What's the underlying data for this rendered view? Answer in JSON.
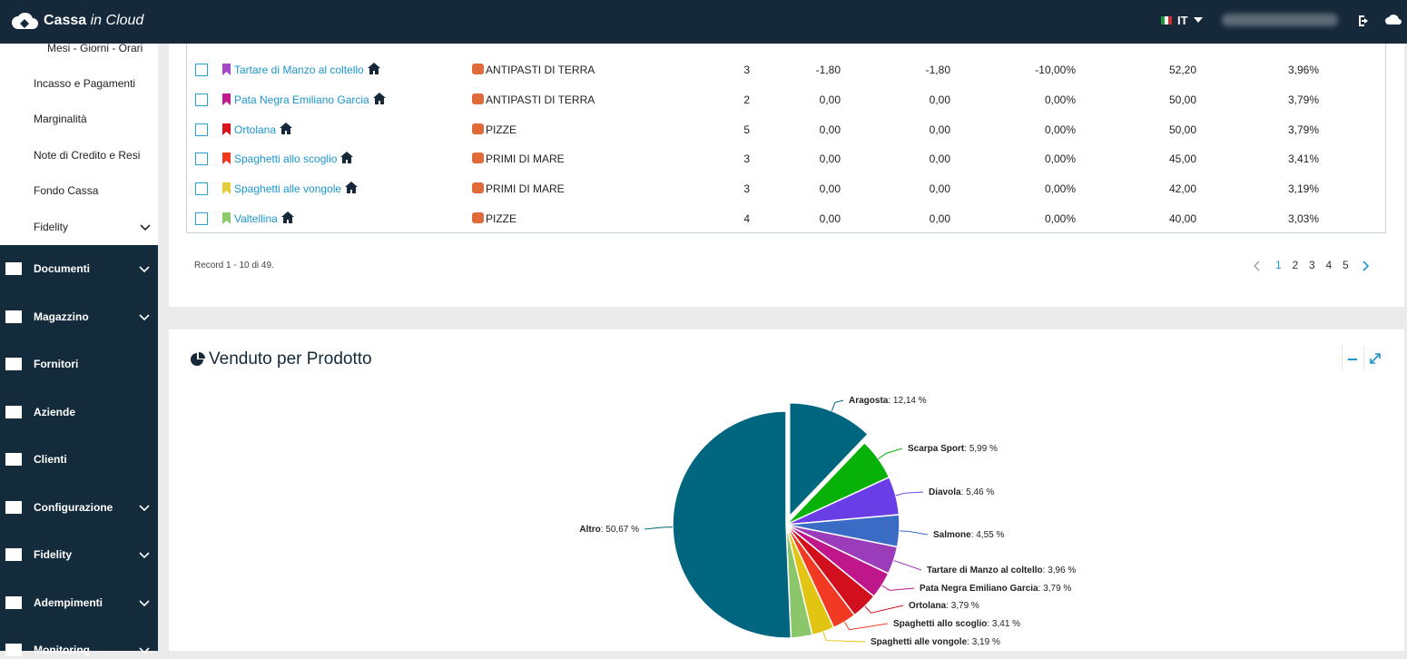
{
  "header": {
    "logo_main": "Cassa",
    "logo_sub": "in Cloud",
    "language": "IT"
  },
  "sidebar": {
    "submenu": [
      "Mesi - Giorni - Orari",
      "Incasso e Pagamenti",
      "Marginalità",
      "Note di Credito e Resi",
      "Fondo Cassa",
      "Fidelity"
    ],
    "submenu_has_children": [
      false,
      false,
      false,
      false,
      false,
      true
    ],
    "menu": [
      "Documenti",
      "Magazzino",
      "Fornitori",
      "Aziende",
      "Clienti",
      "Configurazione",
      "Fidelity",
      "Adempimenti",
      "Monitoring"
    ],
    "menu_has_children": [
      true,
      true,
      false,
      false,
      false,
      true,
      true,
      true,
      true
    ]
  },
  "table": {
    "rows": [
      [
        "Tartare di Manzo al coltello",
        "ANTIPASTI DI TERRA",
        "3",
        "-1,80",
        "-1,80",
        "-10,00%",
        "52,20",
        "3,96%"
      ],
      [
        "Pata Negra Emiliano Garcia",
        "ANTIPASTI DI TERRA",
        "2",
        "0,00",
        "0,00",
        "0,00%",
        "50,00",
        "3,79%"
      ],
      [
        "Ortolana",
        "PIZZE",
        "5",
        "0,00",
        "0,00",
        "0,00%",
        "50,00",
        "3,79%"
      ],
      [
        "Spaghetti allo scoglio",
        "PRIMI DI MARE",
        "3",
        "0,00",
        "0,00",
        "0,00%",
        "45,00",
        "3,41%"
      ],
      [
        "Spaghetti alle vongole",
        "PRIMI DI MARE",
        "3",
        "0,00",
        "0,00",
        "0,00%",
        "42,00",
        "3,19%"
      ],
      [
        "Valtellina",
        "PIZZE",
        "4",
        "0,00",
        "0,00",
        "0,00%",
        "40,00",
        "3,03%"
      ]
    ],
    "marker_colors": [
      "#a547c6",
      "#c2188f",
      "#d8141f",
      "#f0391f",
      "#e6cc3a",
      "#8ccb6a"
    ],
    "records": "Record 1 - 10 di 49.",
    "pages": [
      1,
      2,
      3,
      4,
      5
    ],
    "current_page": 1
  },
  "panel": {
    "title": "Venduto per Prodotto",
    "chart": {
      "type": "pie",
      "labels": [
        "Aragosta",
        "Scarpa Sport",
        "Diavola",
        "Salmone",
        "Tartare di Manzo al coltello",
        "Pata Negra Emiliano Garcia",
        "Ortolana",
        "Spaghetti allo scoglio",
        "Spaghetti alle vongole",
        null,
        "Altro"
      ],
      "values": [
        12.14,
        5.99,
        5.46,
        4.55,
        3.96,
        3.79,
        3.79,
        3.41,
        3.19,
        3.03,
        50.67
      ],
      "value_labels": [
        "12,14 %",
        "5,99 %",
        "5,46 %",
        "4,55 %",
        "3,96 %",
        "3,79 %",
        "3,79 %",
        "3,41 %",
        "3,19 %",
        null,
        "50,67 %"
      ],
      "label_separator": ": ",
      "colors": [
        "#006680",
        "#07b107",
        "#6a3ee6",
        "#3a6cc6",
        "#9b3cba",
        "#c0168c",
        "#d20f1d",
        "#f23a22",
        "#e2c512",
        "#8cc66a",
        "#006680"
      ],
      "exploded_index": 0
    }
  }
}
